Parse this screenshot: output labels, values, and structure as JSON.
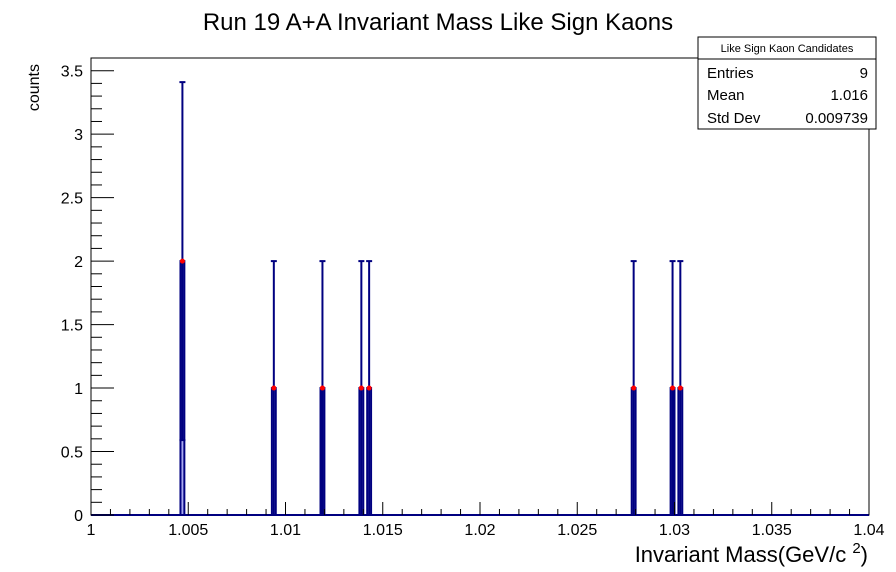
{
  "chart_data": {
    "type": "bar",
    "title": "Run 19 A+A Invariant Mass Like Sign Kaons",
    "xlabel": "Invariant Mass(GeV/c ",
    "xlabel_sup": "2",
    "xlabel_close": ")",
    "ylabel": "counts",
    "xlim": [
      1.0,
      1.04
    ],
    "ylim": [
      0,
      3.6
    ],
    "xticks": [
      "1",
      "1.005",
      "1.01",
      "1.015",
      "1.02",
      "1.025",
      "1.03",
      "1.035",
      "1.04"
    ],
    "xtick_values": [
      1.0,
      1.005,
      1.01,
      1.015,
      1.02,
      1.025,
      1.03,
      1.035,
      1.04
    ],
    "yticks": [
      "0",
      "0.5",
      "1",
      "1.5",
      "2",
      "2.5",
      "3",
      "3.5"
    ],
    "ytick_values": [
      0,
      0.5,
      1,
      1.5,
      2,
      2.5,
      3,
      3.5
    ],
    "bin_width": 0.0002,
    "bins": [
      {
        "x": 1.0047,
        "count": 2,
        "err_low": 0.59,
        "err_high": 3.41
      },
      {
        "x": 1.0094,
        "count": 1,
        "err_low": 0,
        "err_high": 2
      },
      {
        "x": 1.0119,
        "count": 1,
        "err_low": 0,
        "err_high": 2
      },
      {
        "x": 1.0139,
        "count": 1,
        "err_low": 0,
        "err_high": 2
      },
      {
        "x": 1.0143,
        "count": 1,
        "err_low": 0,
        "err_high": 2
      },
      {
        "x": 1.0279,
        "count": 1,
        "err_low": 0,
        "err_high": 2
      },
      {
        "x": 1.0299,
        "count": 1,
        "err_low": 0,
        "err_high": 2
      },
      {
        "x": 1.0303,
        "count": 1,
        "err_low": 0,
        "err_high": 2
      }
    ],
    "colors": {
      "fill": "#aaaaf0",
      "line": "#000080",
      "marker": "#ff0000"
    },
    "legend_position": "top-right",
    "stats_box": {
      "title": "Like Sign Kaon Candidates",
      "rows": [
        {
          "label": "Entries",
          "value": "9"
        },
        {
          "label": "Mean",
          "value": "1.016"
        },
        {
          "label": "Std Dev",
          "value": "0.009739"
        }
      ]
    }
  }
}
